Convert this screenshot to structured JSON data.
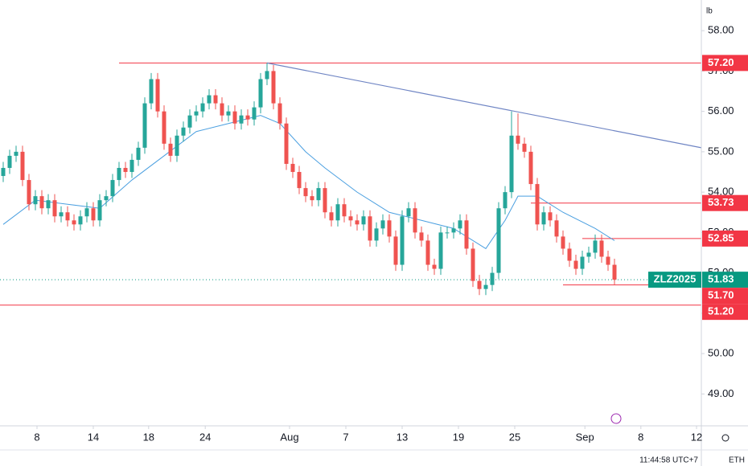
{
  "chart_data": {
    "type": "candlestick",
    "unit": "lb",
    "time": "11:44:58 UTC+7",
    "session": "ETH",
    "xlim": [
      -0.5,
      108.5
    ],
    "ylim": [
      48.21,
      58.76
    ],
    "yticks": [
      {
        "value": 49,
        "label": "49.00"
      },
      {
        "value": 50,
        "label": "50.00"
      },
      {
        "value": 51,
        "label": "51.00"
      },
      {
        "value": 52,
        "label": "52.00"
      },
      {
        "value": 53,
        "label": "53.00"
      },
      {
        "value": 54,
        "label": "54.00"
      },
      {
        "value": 55,
        "label": "55.00"
      },
      {
        "value": 56,
        "label": "56.00"
      },
      {
        "value": 57,
        "label": "57.00"
      },
      {
        "value": 58,
        "label": "58.00"
      }
    ],
    "xticks": [
      {
        "value": 5.25,
        "label": "8"
      },
      {
        "value": 14,
        "label": "14"
      },
      {
        "value": 22.6,
        "label": "18"
      },
      {
        "value": 31.4,
        "label": "24"
      },
      {
        "value": 44.5,
        "label": "Aug"
      },
      {
        "value": 53.25,
        "label": "7"
      },
      {
        "value": 62,
        "label": "13"
      },
      {
        "value": 70.75,
        "label": "19"
      },
      {
        "value": 79.5,
        "label": "25"
      },
      {
        "value": 90.4,
        "label": "Sep"
      },
      {
        "value": 99.1,
        "label": "8"
      },
      {
        "value": 107.75,
        "label": "12"
      }
    ],
    "up_color": "#26a69a",
    "down_color": "#ef5350",
    "open": [
      54.4,
      54.6,
      54.9,
      55.0,
      54.3,
      53.7,
      53.9,
      53.6,
      53.8,
      53.4,
      53.5,
      53.3,
      53.2,
      53.4,
      53.6,
      53.3,
      53.8,
      53.9,
      54.3,
      54.6,
      54.5,
      54.8,
      55.1,
      56.2,
      56.8,
      56.0,
      55.2,
      54.9,
      55.4,
      55.6,
      55.9,
      56.0,
      56.2,
      56.4,
      56.2,
      55.9,
      56.0,
      55.7,
      55.9,
      55.8,
      56.1,
      56.8,
      57.0,
      56.2,
      55.7,
      54.7,
      54.5,
      54.1,
      53.9,
      53.8,
      54.1,
      53.5,
      53.3,
      53.7,
      53.4,
      53.3,
      53.2,
      53.4,
      52.8,
      53.1,
      53.3,
      52.9,
      52.2,
      53.4,
      53.6,
      53.0,
      52.8,
      52.2,
      52.1,
      53.0,
      53.0,
      53.1,
      53.3,
      52.6,
      51.8,
      51.6,
      51.7,
      52.0,
      53.6,
      54.0,
      55.4,
      55.2,
      55.0,
      54.2,
      53.2,
      53.5,
      53.3,
      52.9,
      52.6,
      52.3,
      52.1,
      52.4,
      52.5,
      52.8,
      52.4,
      52.2
    ],
    "high": [
      54.75,
      55.05,
      55.15,
      55.15,
      54.45,
      54.05,
      54.05,
      53.95,
      53.95,
      53.65,
      53.65,
      53.45,
      53.55,
      53.75,
      53.75,
      53.95,
      54.05,
      54.45,
      54.75,
      54.75,
      54.95,
      55.25,
      56.35,
      56.95,
      56.95,
      56.15,
      55.35,
      55.55,
      55.75,
      56.05,
      56.15,
      56.35,
      56.55,
      56.55,
      56.35,
      56.15,
      56.15,
      56.05,
      56.05,
      56.25,
      56.95,
      57.2,
      57.15,
      56.35,
      55.85,
      54.85,
      54.65,
      54.25,
      54.05,
      54.25,
      54.25,
      53.65,
      53.85,
      53.85,
      53.55,
      53.45,
      53.55,
      53.55,
      53.25,
      53.45,
      53.45,
      53.05,
      53.55,
      53.75,
      53.75,
      53.15,
      52.95,
      52.35,
      53.15,
      53.15,
      53.25,
      53.45,
      53.45,
      52.75,
      51.95,
      51.85,
      52.15,
      53.75,
      54.15,
      56.0,
      55.95,
      55.35,
      55.15,
      54.35,
      53.65,
      53.65,
      53.45,
      53.05,
      52.75,
      52.45,
      52.55,
      52.65,
      52.95,
      52.95,
      52.55,
      52.35
    ],
    "low": [
      54.25,
      54.45,
      54.75,
      54.15,
      53.55,
      53.55,
      53.45,
      53.45,
      53.25,
      53.25,
      53.15,
      53.05,
      53.05,
      53.25,
      53.15,
      53.15,
      53.65,
      53.75,
      54.15,
      54.35,
      54.35,
      54.65,
      54.95,
      56.05,
      55.85,
      55.05,
      54.75,
      54.75,
      55.25,
      55.45,
      55.75,
      55.85,
      56.05,
      56.05,
      55.75,
      55.75,
      55.55,
      55.55,
      55.65,
      55.65,
      55.95,
      56.65,
      56.05,
      55.55,
      54.55,
      54.35,
      53.95,
      53.75,
      53.65,
      53.65,
      53.35,
      53.15,
      53.15,
      53.25,
      53.15,
      53.05,
      53.05,
      52.65,
      52.65,
      52.95,
      52.75,
      52.05,
      52.05,
      53.25,
      52.85,
      52.65,
      52.05,
      51.95,
      51.95,
      52.85,
      52.85,
      52.95,
      52.45,
      51.65,
      51.45,
      51.45,
      51.55,
      51.85,
      53.45,
      53.85,
      55.05,
      54.85,
      54.05,
      53.05,
      53.05,
      53.15,
      52.75,
      52.45,
      52.15,
      51.95,
      51.95,
      52.25,
      52.35,
      52.25,
      52.05,
      51.7
    ],
    "close": [
      54.6,
      54.9,
      55.0,
      54.3,
      53.7,
      53.9,
      53.6,
      53.8,
      53.4,
      53.5,
      53.3,
      53.2,
      53.4,
      53.6,
      53.3,
      53.8,
      53.9,
      54.3,
      54.6,
      54.5,
      54.8,
      55.1,
      56.2,
      56.8,
      56.0,
      55.2,
      54.9,
      55.4,
      55.6,
      55.9,
      56.0,
      56.2,
      56.4,
      56.2,
      55.9,
      56.0,
      55.7,
      55.9,
      55.8,
      56.1,
      56.8,
      57.0,
      56.2,
      55.7,
      54.7,
      54.5,
      54.1,
      53.9,
      53.8,
      54.1,
      53.5,
      53.3,
      53.7,
      53.4,
      53.3,
      53.2,
      53.4,
      52.8,
      53.1,
      53.3,
      52.9,
      52.2,
      53.4,
      53.6,
      53.0,
      52.8,
      52.2,
      52.1,
      53.0,
      53.0,
      53.1,
      53.3,
      52.6,
      51.8,
      51.6,
      51.7,
      52.0,
      53.6,
      54.0,
      55.4,
      55.2,
      55.0,
      54.2,
      53.2,
      53.5,
      53.3,
      52.9,
      52.6,
      52.3,
      52.1,
      52.4,
      52.5,
      52.8,
      52.4,
      52.2,
      51.83
    ],
    "ma": {
      "color": "#4a9fe0",
      "x": [
        0,
        5,
        10,
        15,
        20,
        25,
        30,
        35,
        40,
        43,
        47,
        50,
        55,
        60,
        65,
        70,
        75,
        78,
        80,
        83,
        87,
        92,
        95
      ],
      "values": [
        53.2,
        53.8,
        53.7,
        53.6,
        54.3,
        54.9,
        55.5,
        55.7,
        55.9,
        55.7,
        55.0,
        54.6,
        54.0,
        53.5,
        53.3,
        53.1,
        52.6,
        53.3,
        53.9,
        53.9,
        53.5,
        53.1,
        52.8
      ]
    },
    "trend": {
      "color": "#6f85c4",
      "x": [
        41,
        108.5
      ],
      "values": [
        57.2,
        55.1
      ]
    },
    "levels": [
      {
        "value": 57.2,
        "label": "57.20",
        "x_start": 18,
        "color": "#f23645"
      },
      {
        "value": 53.73,
        "label": "53.73",
        "x_start": 82,
        "color": "#f23645"
      },
      {
        "value": 52.85,
        "label": "52.85",
        "x_start": 90,
        "color": "#f23645"
      },
      {
        "value": 51.7,
        "label": "51.70",
        "x_start": 87,
        "color": "#f23645"
      },
      {
        "value": 51.2,
        "label": "51.20",
        "x_start": -0.5,
        "color": "#f23645"
      }
    ],
    "last": {
      "symbol": "ZLZ2025",
      "value": 51.83,
      "color": "#089981"
    }
  }
}
